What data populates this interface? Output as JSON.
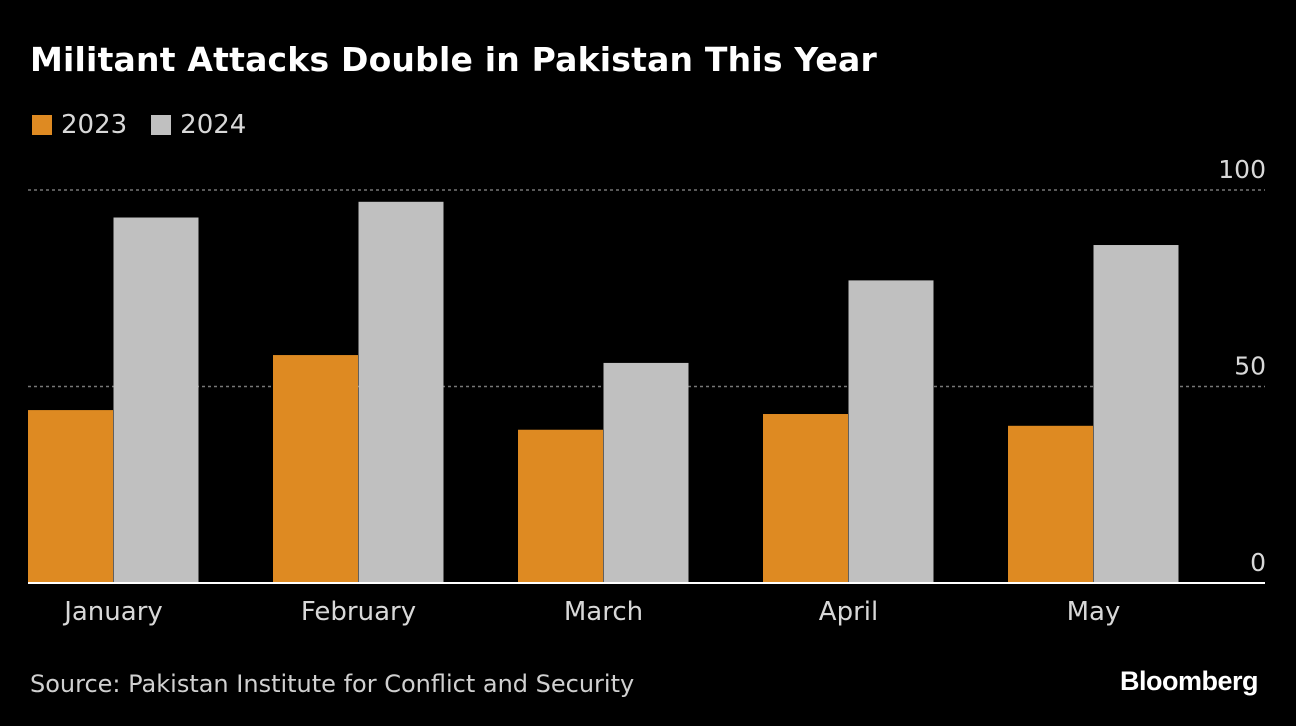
{
  "title": "Militant Attacks Double in Pakistan This Year",
  "source": "Source: Pakistan Institute for Conflict and Security",
  "brand": "Bloomberg",
  "colors": {
    "background": "#000000",
    "series_2023": "#de8a22",
    "series_2024": "#c0c0c0",
    "gridline": "#777777",
    "baseline": "#ffffff"
  },
  "chart_data": {
    "type": "bar",
    "title": "Militant Attacks Double in Pakistan This Year",
    "categories": [
      "January",
      "February",
      "March",
      "April",
      "May"
    ],
    "series": [
      {
        "name": "2023",
        "values": [
          44,
          58,
          39,
          43,
          40
        ]
      },
      {
        "name": "2024",
        "values": [
          93,
          97,
          56,
          77,
          86
        ]
      }
    ],
    "ylim": [
      0,
      100
    ],
    "yticks": [
      0,
      50,
      100
    ],
    "ytick_labels": [
      "0",
      "50",
      "100"
    ],
    "xlabel": "",
    "ylabel": "",
    "grid": true,
    "legend": "top-left",
    "yaxis_side": "right"
  }
}
